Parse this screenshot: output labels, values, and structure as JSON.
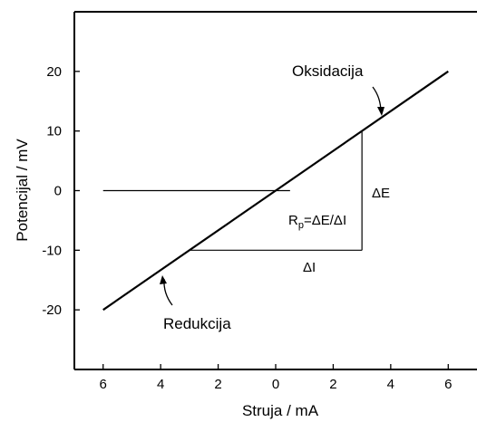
{
  "chart_data": {
    "type": "line",
    "xlabel": "Struja / mA",
    "ylabel": "Potencijal / mV",
    "x_data_range": [
      -7,
      7
    ],
    "y_data_range": [
      -30,
      30
    ],
    "x_ticks": [
      -6,
      -4,
      -2,
      0,
      2,
      4,
      6
    ],
    "x_tick_labels": [
      "6",
      "4",
      "2",
      "0",
      "2",
      "4",
      "6"
    ],
    "y_ticks": [
      -20,
      -10,
      0,
      10,
      20
    ],
    "y_tick_labels": [
      "-20",
      "-10",
      "0",
      "10",
      "20"
    ],
    "grid": false,
    "series": [
      {
        "x": [
          -6,
          6
        ],
        "y": [
          -20,
          20
        ]
      }
    ],
    "zero_line": {
      "x": [
        -6,
        0.5
      ],
      "y": [
        0,
        0
      ]
    },
    "triangle": {
      "x_from": -3,
      "x_to": 3,
      "y_from": -10,
      "y_to": 10
    },
    "annotations": {
      "oxidation": "Oksidacija",
      "reduction": "Redukcija",
      "delta_e": "ΔE",
      "delta_i": "ΔI",
      "rp_main": "R",
      "rp_sub": "p",
      "rp_rest": "=ΔE/ΔI"
    },
    "colors": {
      "line": "#000000",
      "background": "#ffffff"
    }
  }
}
